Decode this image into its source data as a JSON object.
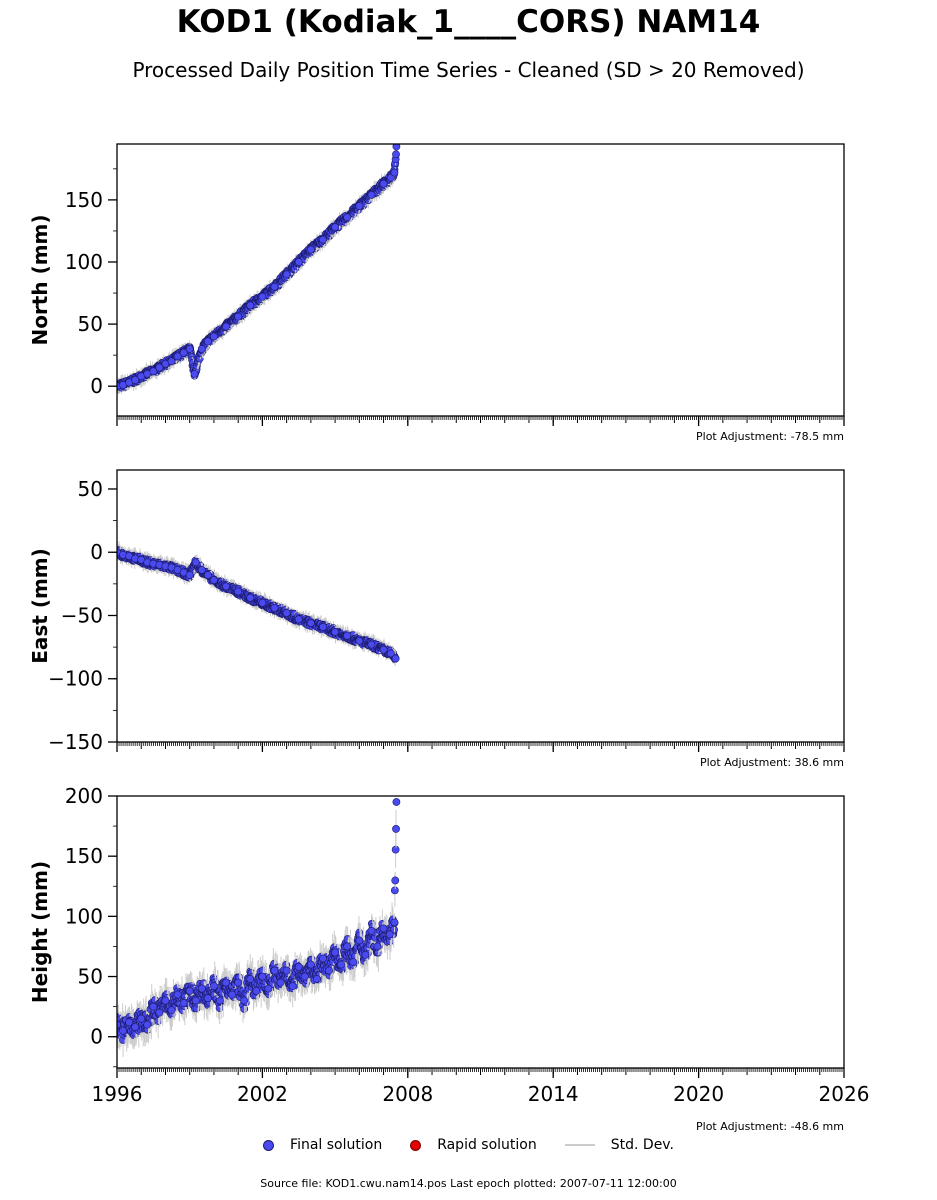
{
  "header": {
    "title": "KOD1 (Kodiak_1____CORS) NAM14",
    "subtitle": "Processed Daily Position Time Series - Cleaned (SD > 20 Removed)"
  },
  "colors": {
    "final": "#4a4af0",
    "final_edge": "#1a1a6a",
    "rapid": "#e00000",
    "stddev": "#cccccc"
  },
  "chart_data": [
    {
      "type": "scatter",
      "ylabel": "North (mm)",
      "adjustment": "Plot Adjustment: -78.5 mm",
      "xlim": [
        1996,
        2026
      ],
      "ylim": [
        -24,
        195
      ],
      "yticks": [
        0,
        50,
        100,
        150
      ],
      "ytick_labels": [
        "0",
        "50",
        "100",
        "150"
      ],
      "xticks": [
        1996,
        2002,
        2008,
        2014,
        2020,
        2026
      ],
      "xtick_labels": [],
      "series": [
        {
          "x": [
            1996.0,
            1996.25,
            1996.5,
            1996.75,
            1997.0,
            1997.25,
            1997.5,
            1997.75,
            1998.0,
            1998.25,
            1998.5,
            1998.75,
            1999.0,
            1999.2,
            1999.5,
            1999.75,
            2000.0,
            2000.5,
            2001.0,
            2001.5,
            2002.0,
            2002.5,
            2003.0,
            2003.5,
            2004.0,
            2004.5,
            2005.0,
            2005.5,
            2006.0,
            2006.5,
            2007.0,
            2007.3,
            2007.45,
            2007.53
          ],
          "y": [
            0,
            1,
            3,
            5,
            8,
            10,
            12,
            15,
            18,
            20,
            24,
            27,
            30,
            10,
            30,
            36,
            40,
            48,
            56,
            65,
            72,
            80,
            90,
            100,
            110,
            118,
            128,
            136,
            145,
            154,
            163,
            168,
            172,
            193
          ]
        }
      ]
    },
    {
      "type": "scatter",
      "ylabel": "East (mm)",
      "adjustment": "Plot Adjustment: 38.6 mm",
      "xlim": [
        1996,
        2026
      ],
      "ylim": [
        -150,
        65
      ],
      "yticks": [
        -150,
        -100,
        -50,
        0,
        50
      ],
      "ytick_labels": [
        "−150",
        "−100",
        "−50",
        "0",
        "50"
      ],
      "xticks": [
        1996,
        2002,
        2008,
        2014,
        2020,
        2026
      ],
      "xtick_labels": [],
      "series": [
        {
          "x": [
            1996.0,
            1996.25,
            1996.5,
            1996.75,
            1997.0,
            1997.25,
            1997.5,
            1997.75,
            1998.0,
            1998.25,
            1998.5,
            1998.75,
            1999.0,
            1999.25,
            1999.5,
            1999.75,
            2000.0,
            2000.5,
            2001.0,
            2001.5,
            2002.0,
            2002.5,
            2003.0,
            2003.5,
            2004.0,
            2004.5,
            2005.0,
            2005.5,
            2006.0,
            2006.5,
            2007.0,
            2007.3,
            2007.5
          ],
          "y": [
            0,
            -2,
            -3,
            -5,
            -6,
            -8,
            -9,
            -10,
            -11,
            -12,
            -14,
            -16,
            -18,
            -8,
            -14,
            -18,
            -22,
            -27,
            -31,
            -36,
            -40,
            -44,
            -48,
            -53,
            -56,
            -59,
            -63,
            -66,
            -70,
            -73,
            -77,
            -80,
            -84
          ]
        }
      ]
    },
    {
      "type": "scatter",
      "ylabel": "Height (mm)",
      "adjustment": "Plot Adjustment: -48.6 mm",
      "xlim": [
        1996,
        2026
      ],
      "ylim": [
        -26,
        200
      ],
      "yticks": [
        0,
        50,
        100,
        150,
        200
      ],
      "ytick_labels": [
        "0",
        "50",
        "100",
        "150",
        "200"
      ],
      "xticks": [
        1996,
        2002,
        2008,
        2014,
        2020,
        2026
      ],
      "xtick_labels": [
        "1996",
        "2002",
        "2008",
        "2014",
        "2020",
        "2026"
      ],
      "series": [
        {
          "x": [
            1996.0,
            1996.25,
            1996.5,
            1996.75,
            1997.0,
            1997.25,
            1997.5,
            1997.75,
            1998.0,
            1998.25,
            1998.5,
            1998.75,
            1999.0,
            1999.25,
            1999.5,
            1999.75,
            2000.0,
            2000.25,
            2000.5,
            2000.75,
            2001.0,
            2001.25,
            2001.5,
            2001.75,
            2002.0,
            2002.25,
            2002.5,
            2002.75,
            2003.0,
            2003.25,
            2003.5,
            2003.75,
            2004.0,
            2004.25,
            2004.5,
            2004.75,
            2005.0,
            2005.25,
            2005.5,
            2005.75,
            2006.0,
            2006.25,
            2006.5,
            2006.75,
            2007.0,
            2007.25,
            2007.45,
            2007.53
          ],
          "y": [
            10,
            5,
            12,
            8,
            15,
            10,
            25,
            20,
            30,
            22,
            35,
            28,
            38,
            30,
            40,
            32,
            42,
            30,
            45,
            35,
            45,
            30,
            48,
            38,
            50,
            40,
            55,
            45,
            55,
            42,
            58,
            50,
            60,
            48,
            65,
            55,
            70,
            60,
            75,
            62,
            80,
            68,
            88,
            75,
            90,
            85,
            95,
            195
          ]
        }
      ]
    }
  ],
  "legend": {
    "final": "Final solution",
    "rapid": "Rapid solution",
    "stddev": "Std. Dev."
  },
  "footer": {
    "source": "Source file: KOD1.cwu.nam14.pos  Last epoch plotted: 2007-07-11 12:00:00"
  }
}
